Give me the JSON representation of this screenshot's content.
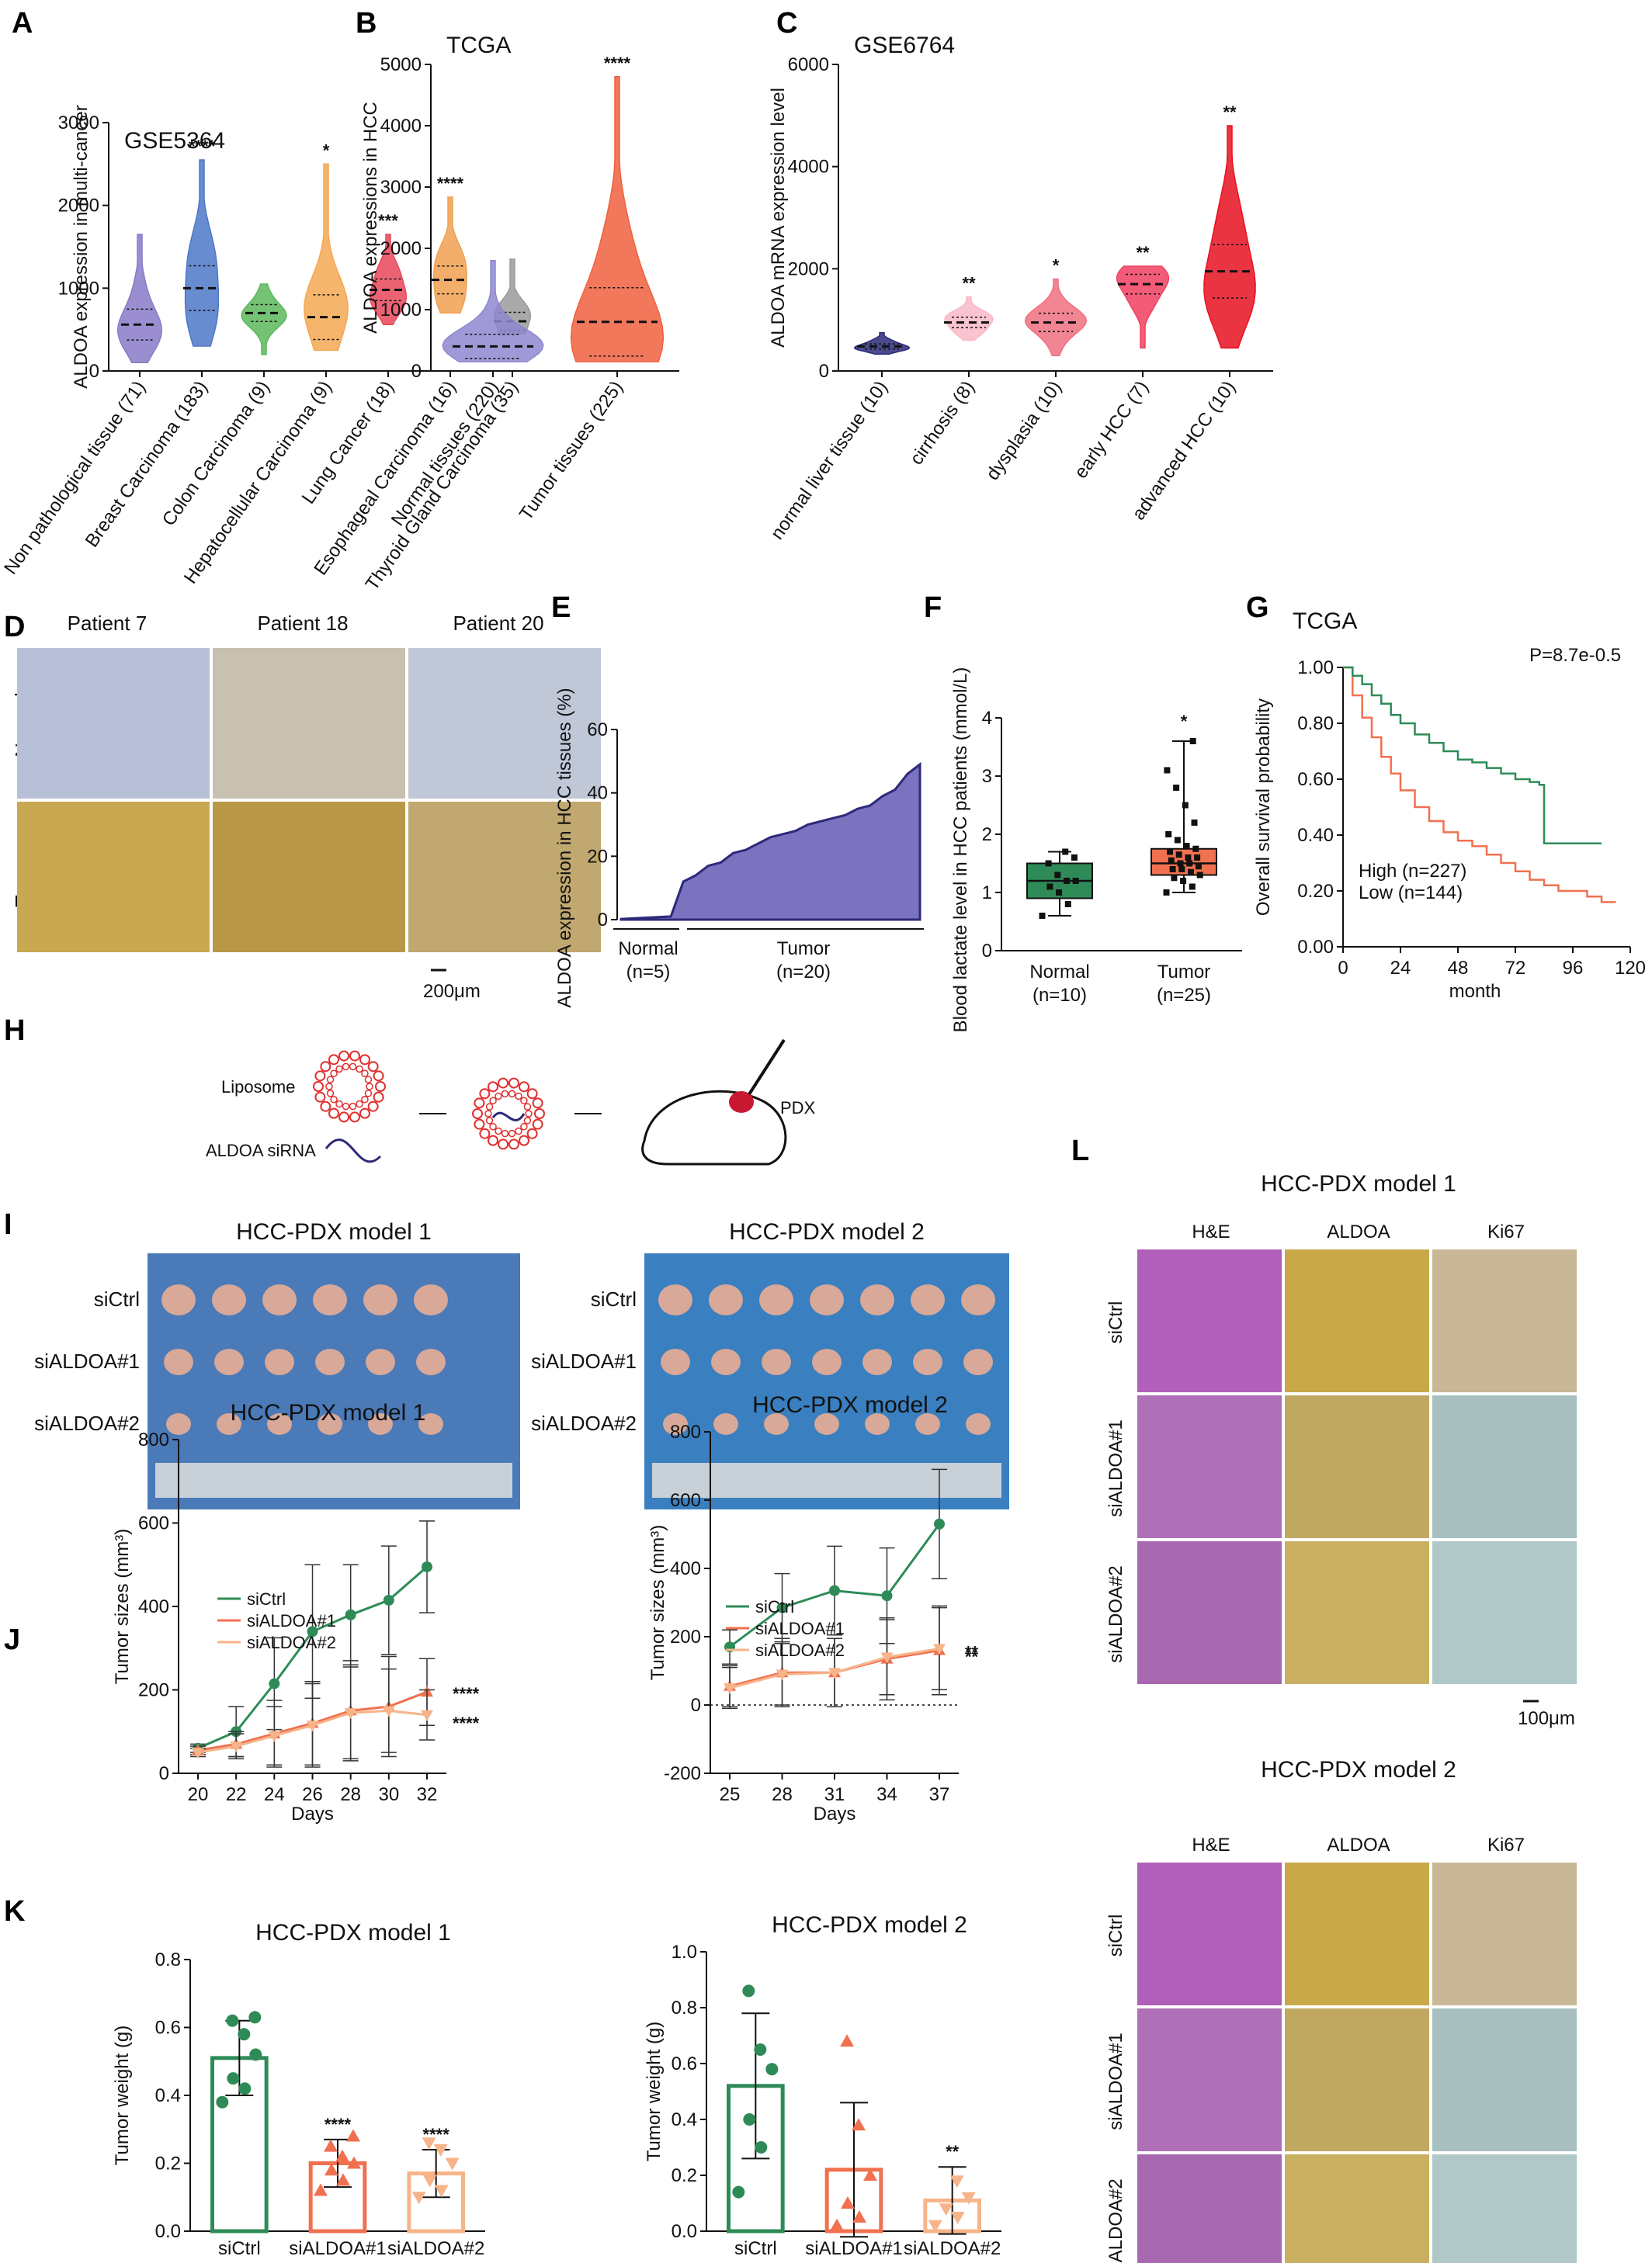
{
  "panels": {
    "A": "A",
    "B": "B",
    "C": "C",
    "D": "D",
    "E": "E",
    "F": "F",
    "G": "G",
    "H": "H",
    "I": "I",
    "J": "J",
    "K": "K",
    "L": "L"
  },
  "colors": {
    "green": "#2e8b57",
    "orange_dark": "#f07050",
    "orange_light": "#f7b48a",
    "purple_fill": "#7b72c0",
    "violin_blue": "#5b7fce",
    "violin_purple": "#8a7ac8",
    "red": "#e82020",
    "navy": "#2c2a7a"
  },
  "chart_data": [
    {
      "id": "A",
      "type": "violin",
      "title": "GSE5364",
      "xlabel": "",
      "ylabel": "ALDOA expression in multi-cancer",
      "ylim": [
        0,
        3000
      ],
      "yticks": [
        "0",
        "1000",
        "2000",
        "3000"
      ],
      "categories": [
        "Non pathological tissue (71)",
        "Breast Carcinoma (183)",
        "Colon Carcinoma (9)",
        "Hepatocellular Carcinoma (9)",
        "Lung Cancer (18)",
        "Esophageal Carcinoma (16)",
        "Thyroid Gland Carcinoma (35)"
      ],
      "medians": [
        560,
        1000,
        700,
        650,
        980,
        1100,
        600
      ],
      "ranges": [
        [
          100,
          1650
        ],
        [
          300,
          2550
        ],
        [
          200,
          1050
        ],
        [
          250,
          2500
        ],
        [
          560,
          1650
        ],
        [
          700,
          2100
        ],
        [
          450,
          1350
        ]
      ],
      "colors": [
        "#8a7ac8",
        "#4d78c8",
        "#5cb85c",
        "#f4a852",
        "#e8485a",
        "#f0a050",
        "#9a9a9a"
      ],
      "significance": [
        "",
        "****",
        "",
        "*",
        "***",
        "****",
        ""
      ]
    },
    {
      "id": "B",
      "type": "violin",
      "title": "TCGA",
      "ylabel": "ALDOA expressions in HCC",
      "ylim": [
        0,
        5000
      ],
      "yticks": [
        "0",
        "1000",
        "2000",
        "3000",
        "4000",
        "5000"
      ],
      "categories": [
        "Normal tissues (220)",
        "Tumor tissues (225)"
      ],
      "medians": [
        400,
        800
      ],
      "ranges": [
        [
          150,
          1800
        ],
        [
          150,
          4800
        ]
      ],
      "colors": [
        "#8e88d0",
        "#f06040"
      ],
      "significance": [
        "",
        "****"
      ]
    },
    {
      "id": "C",
      "type": "violin",
      "title": "GSE6764",
      "ylabel": "ALDOA mRNA expression level",
      "ylim": [
        0,
        6000
      ],
      "yticks": [
        "0",
        "2000",
        "4000",
        "6000"
      ],
      "categories": [
        "normal liver tissue (10)",
        "cirrhosis (8)",
        "dysplasia (10)",
        "early HCC (7)",
        "advanced HCC (10)"
      ],
      "medians": [
        480,
        950,
        950,
        1700,
        1950
      ],
      "ranges": [
        [
          330,
          750
        ],
        [
          600,
          1450
        ],
        [
          300,
          1800
        ],
        [
          450,
          2050
        ],
        [
          450,
          4800
        ]
      ],
      "colors": [
        "#2c2a7a",
        "#f8b8c8",
        "#f07080",
        "#f04060",
        "#e81020"
      ],
      "significance": [
        "",
        "**",
        "*",
        "**",
        "**"
      ]
    },
    {
      "id": "D",
      "type": "image_grid",
      "columns": [
        "Patient 7",
        "Patient 18",
        "Patient 20"
      ],
      "rows": [
        "Normal",
        "Tumor"
      ],
      "scale_bar": "200μm"
    },
    {
      "id": "E",
      "type": "area",
      "ylabel": "ALDOA expression in HCC tissues (%)",
      "ylim": [
        0,
        60
      ],
      "yticks": [
        "0",
        "20",
        "40",
        "60"
      ],
      "groups": [
        {
          "label": "Normal",
          "n": "(n=5)"
        },
        {
          "label": "Tumor",
          "n": "(n=20)"
        }
      ],
      "x": [
        0,
        1,
        2,
        3,
        4,
        5,
        6,
        7,
        8,
        9,
        10,
        11,
        12,
        13,
        14,
        15,
        16,
        17,
        18,
        19,
        20,
        21,
        22,
        23,
        24
      ],
      "values": [
        0.2,
        0.4,
        0.6,
        0.8,
        1.0,
        12,
        14,
        17,
        18,
        21,
        22,
        24,
        26,
        27,
        28,
        30,
        31,
        32,
        33,
        35,
        36,
        39,
        41,
        46,
        49
      ]
    },
    {
      "id": "F",
      "type": "box",
      "ylabel": "Blood lactate level in HCC patients (mmol/L)",
      "ylim": [
        0,
        4
      ],
      "yticks": [
        "0",
        "1",
        "2",
        "3",
        "4"
      ],
      "categories": [
        "Normal",
        "Tumor"
      ],
      "n_labels": [
        "(n=10)",
        "(n=25)"
      ],
      "box": [
        {
          "min": 0.6,
          "q1": 0.9,
          "median": 1.2,
          "q3": 1.5,
          "max": 1.7
        },
        {
          "min": 1.0,
          "q1": 1.3,
          "median": 1.5,
          "q3": 1.75,
          "max": 3.6
        }
      ],
      "points": [
        [
          0.6,
          0.8,
          1.0,
          1.1,
          1.2,
          1.2,
          1.3,
          1.5,
          1.6,
          1.7
        ],
        [
          1.0,
          1.1,
          1.2,
          1.25,
          1.3,
          1.35,
          1.4,
          1.4,
          1.45,
          1.5,
          1.5,
          1.55,
          1.6,
          1.6,
          1.65,
          1.7,
          1.75,
          1.8,
          1.9,
          2.0,
          2.2,
          2.5,
          2.8,
          3.1,
          3.6
        ]
      ],
      "colors": [
        "#2e8b57",
        "#f07050"
      ],
      "significance": [
        "",
        "*"
      ]
    },
    {
      "id": "G",
      "type": "line",
      "title": "TCGA",
      "pvalue": "P=8.7e-0.5",
      "ylabel": "Overall survival probability",
      "xlabel": "month",
      "ylim": [
        0,
        1
      ],
      "xlim": [
        0,
        120
      ],
      "yticks": [
        "0.00",
        "0.20",
        "0.40",
        "0.60",
        "0.80",
        "1.00"
      ],
      "xticks": [
        "0",
        "24",
        "48",
        "72",
        "96",
        "120"
      ],
      "series": [
        {
          "name": "High (n=227)",
          "color": "#f07050",
          "x": [
            0,
            4,
            8,
            12,
            16,
            20,
            24,
            30,
            36,
            42,
            48,
            54,
            60,
            66,
            72,
            78,
            84,
            90,
            96,
            102,
            108,
            114
          ],
          "y": [
            1.0,
            0.9,
            0.82,
            0.75,
            0.68,
            0.62,
            0.56,
            0.5,
            0.45,
            0.41,
            0.38,
            0.36,
            0.33,
            0.3,
            0.27,
            0.24,
            0.22,
            0.2,
            0.2,
            0.18,
            0.16,
            0.16
          ]
        },
        {
          "name": "Low (n=144)",
          "color": "#2e8b57",
          "x": [
            0,
            4,
            8,
            12,
            16,
            20,
            24,
            30,
            36,
            42,
            48,
            54,
            60,
            66,
            72,
            78,
            82,
            84,
            96,
            108
          ],
          "y": [
            1.0,
            0.97,
            0.94,
            0.9,
            0.87,
            0.83,
            0.8,
            0.76,
            0.73,
            0.7,
            0.67,
            0.66,
            0.64,
            0.62,
            0.6,
            0.59,
            0.58,
            0.37,
            0.37,
            0.37
          ]
        }
      ]
    },
    {
      "id": "H",
      "type": "schematic",
      "labels": {
        "liposome": "Liposome",
        "sirna": "ALDOA siRNA",
        "pdx": "PDX"
      }
    },
    {
      "id": "I",
      "type": "image_grid",
      "panels": [
        {
          "title": "HCC-PDX model 1",
          "rows": [
            "siCtrl",
            "siALDOA#1",
            "siALDOA#2"
          ]
        },
        {
          "title": "HCC-PDX model 2",
          "rows": [
            "siCtrl",
            "siALDOA#1",
            "siALDOA#2"
          ]
        }
      ]
    },
    {
      "id": "J1",
      "type": "line",
      "title": "HCC-PDX model 1",
      "xlabel": "Days",
      "ylabel": "Tumor sizes (mm³)",
      "ylim": [
        0,
        800
      ],
      "yticks": [
        "0",
        "200",
        "400",
        "600",
        "800"
      ],
      "x": [
        20,
        22,
        24,
        26,
        28,
        30,
        32
      ],
      "xticks": [
        "20",
        "22",
        "24",
        "26",
        "28",
        "30",
        "32"
      ],
      "series": [
        {
          "name": "siCtrl",
          "color": "#2e8b57",
          "values": [
            60,
            100,
            215,
            340,
            380,
            415,
            495
          ],
          "err": [
            10,
            60,
            110,
            160,
            120,
            130,
            110
          ]
        },
        {
          "name": "siALDOA#1",
          "color": "#f07050",
          "values": [
            55,
            70,
            95,
            120,
            150,
            160,
            195
          ],
          "err": [
            10,
            30,
            80,
            100,
            120,
            120,
            80
          ]
        },
        {
          "name": "siALDOA#2",
          "color": "#f7b48a",
          "values": [
            50,
            65,
            90,
            115,
            145,
            150,
            140
          ],
          "err": [
            10,
            30,
            70,
            100,
            110,
            100,
            60
          ]
        }
      ],
      "significance": [
        "****",
        "****"
      ]
    },
    {
      "id": "J2",
      "type": "line",
      "title": "HCC-PDX model 2",
      "xlabel": "Days",
      "ylabel": "Tumor sizes (mm³)",
      "ylim": [
        -200,
        800
      ],
      "yticks": [
        "-200",
        "0",
        "200",
        "400",
        "600",
        "800"
      ],
      "x": [
        25,
        28,
        31,
        34,
        37
      ],
      "xticks": [
        "25",
        "28",
        "31",
        "34",
        "37"
      ],
      "series": [
        {
          "name": "siCtrl",
          "color": "#2e8b57",
          "values": [
            170,
            285,
            335,
            320,
            530
          ],
          "err": [
            50,
            100,
            130,
            140,
            160
          ]
        },
        {
          "name": "siALDOA#1",
          "color": "#f07050",
          "values": [
            55,
            95,
            95,
            135,
            160
          ],
          "err": [
            60,
            100,
            100,
            120,
            130
          ]
        },
        {
          "name": "siALDOA#2",
          "color": "#f7b48a",
          "values": [
            50,
            90,
            95,
            140,
            165
          ],
          "err": [
            60,
            90,
            100,
            110,
            120
          ]
        }
      ],
      "significance": [
        "**",
        "**"
      ]
    },
    {
      "id": "K1",
      "type": "bar",
      "title": "HCC-PDX model 1",
      "ylabel": "Tumor weight (g)",
      "ylim": [
        0,
        0.8
      ],
      "yticks": [
        "0.0",
        "0.2",
        "0.4",
        "0.6",
        "0.8"
      ],
      "categories": [
        "siCtrl",
        "siALDOA#1",
        "siALDOA#2"
      ],
      "values": [
        0.51,
        0.2,
        0.17
      ],
      "err": [
        0.11,
        0.07,
        0.07
      ],
      "points": [
        [
          0.38,
          0.42,
          0.45,
          0.52,
          0.58,
          0.62,
          0.63
        ],
        [
          0.12,
          0.15,
          0.18,
          0.2,
          0.22,
          0.25,
          0.28
        ],
        [
          0.1,
          0.12,
          0.15,
          0.2,
          0.24,
          0.26
        ]
      ],
      "colors": [
        "#2e8b57",
        "#f07050",
        "#f7b48a"
      ],
      "significance": [
        "",
        "****",
        "****"
      ]
    },
    {
      "id": "K2",
      "type": "bar",
      "title": "HCC-PDX model 2",
      "ylabel": "Tumor weight (g)",
      "ylim": [
        0,
        1.0
      ],
      "yticks": [
        "0.0",
        "0.2",
        "0.4",
        "0.6",
        "0.8",
        "1.0"
      ],
      "categories": [
        "siCtrl",
        "siALDOA#1",
        "siALDOA#2"
      ],
      "values": [
        0.52,
        0.22,
        0.11
      ],
      "err": [
        0.26,
        0.24,
        0.12
      ],
      "points": [
        [
          0.14,
          0.3,
          0.4,
          0.58,
          0.65,
          0.86
        ],
        [
          0.02,
          0.05,
          0.1,
          0.2,
          0.38,
          0.68
        ],
        [
          0.02,
          0.05,
          0.08,
          0.12,
          0.18
        ]
      ],
      "colors": [
        "#2e8b57",
        "#f07050",
        "#f7b48a"
      ],
      "significance": [
        "",
        "",
        "**"
      ]
    },
    {
      "id": "L",
      "type": "image_grid",
      "panels": [
        {
          "title": "HCC-PDX model 1",
          "columns": [
            "H&E",
            "ALDOA",
            "Ki67"
          ],
          "rows": [
            "siCtrl",
            "siALDOA#1",
            "siALDOA#2"
          ],
          "scale_bar": "100μm"
        },
        {
          "title": "HCC-PDX model 2",
          "columns": [
            "H&E",
            "ALDOA",
            "Ki67"
          ],
          "rows": [
            "siCtrl",
            "siALDOA#1",
            "siALDOA#2"
          ],
          "scale_bar": "100μm"
        }
      ]
    }
  ]
}
